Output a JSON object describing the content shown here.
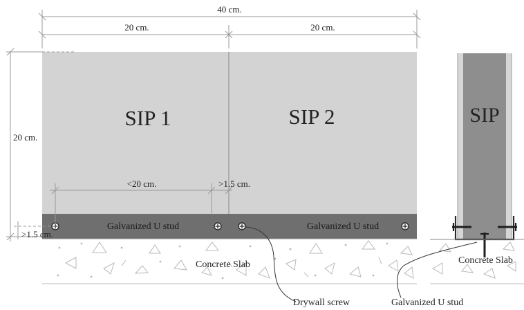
{
  "dimensions": {
    "overall_width": "40 cm.",
    "left_width": "20 cm.",
    "right_width": "20 cm.",
    "height": "20 cm.",
    "screw_spacing": "<20 cm.",
    "edge_distance_top": ">1.5 cm.",
    "edge_distance_left": ">1.5 cm."
  },
  "panels": {
    "sip1": "SIP 1",
    "sip2": "SIP 2",
    "section": "SIP"
  },
  "labels": {
    "u_stud_left": "Galvanized U stud",
    "u_stud_right": "Galvanized U stud",
    "concrete_slab": "Concrete Slab",
    "concrete_slab_section": "Concrete Slab",
    "drywall_screw": "Drywall screw",
    "u_stud_callout": "Galvanized U stud"
  },
  "colors": {
    "panel": "#d3d3d3",
    "stud": "#6f6f6f",
    "section_core": "#8e8e8e",
    "section_skin": "#d6d6d6",
    "dimension_line": "#9a9a9a"
  }
}
